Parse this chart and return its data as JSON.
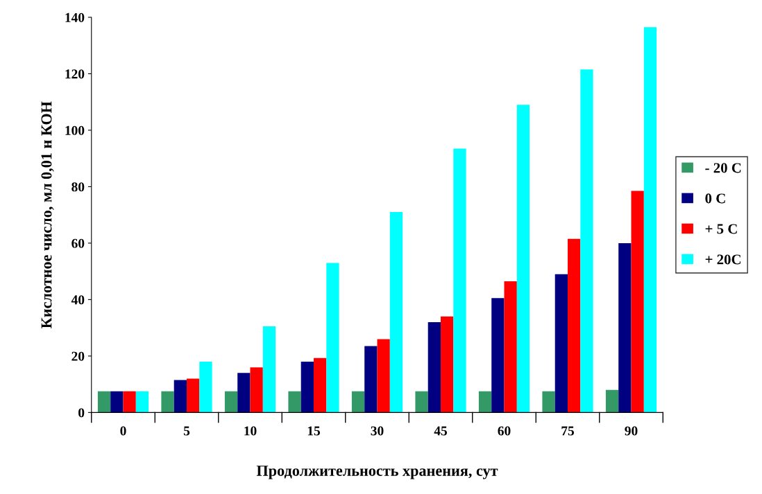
{
  "chart_data": {
    "type": "bar",
    "xlabel": "Продолжительность хранения, сут",
    "ylabel": "Кислотное число, мл 0,01 н КОН",
    "categories": [
      "0",
      "5",
      "10",
      "15",
      "30",
      "45",
      "60",
      "75",
      "90"
    ],
    "series": [
      {
        "name": "- 20 C",
        "color": "#339966",
        "values": [
          7.5,
          7.5,
          7.5,
          7.5,
          7.5,
          7.5,
          7.5,
          7.5,
          8
        ]
      },
      {
        "name": "0 C",
        "color": "#000080",
        "values": [
          7.5,
          11.5,
          14,
          18,
          23.5,
          32,
          40.5,
          49,
          60
        ]
      },
      {
        "name": "+ 5 C",
        "color": "#ff0000",
        "values": [
          7.5,
          12,
          16,
          19.3,
          26,
          34,
          46.5,
          61.5,
          78.5
        ]
      },
      {
        "name": "+ 20C",
        "color": "#00ffff",
        "values": [
          7.5,
          18,
          30.5,
          53,
          71,
          93.5,
          109,
          121.5,
          136.5
        ]
      }
    ],
    "ylim": [
      0,
      140
    ],
    "yticks": [
      0,
      20,
      40,
      60,
      80,
      100,
      120,
      140
    ],
    "grid": false,
    "legend": "right"
  }
}
